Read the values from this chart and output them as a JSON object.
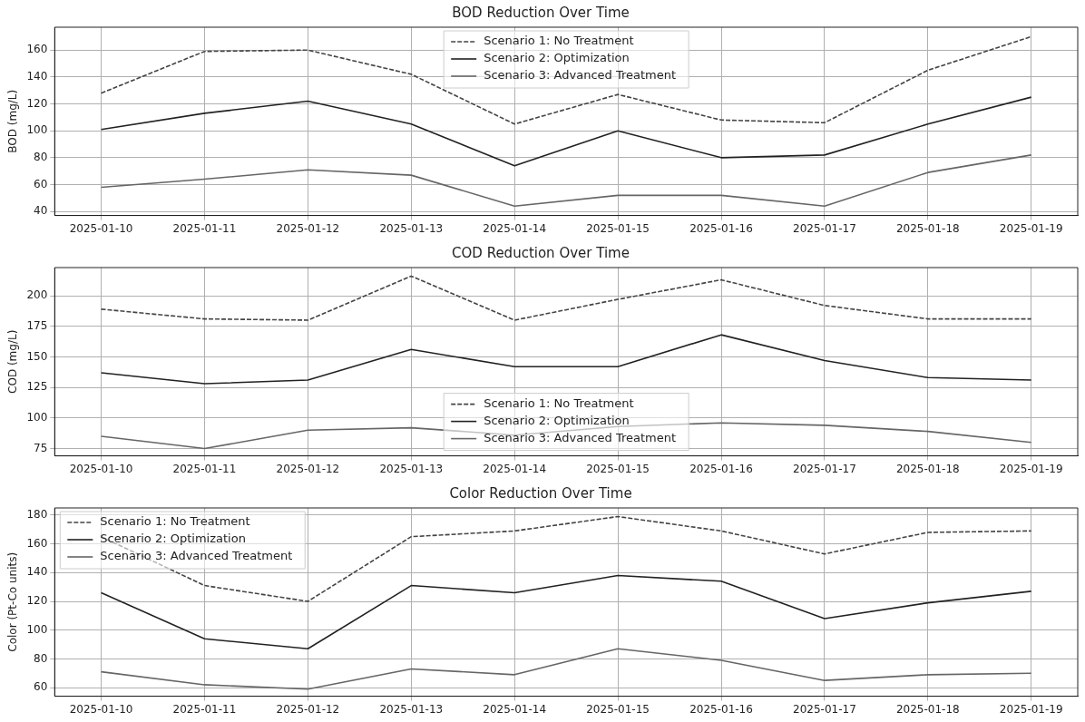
{
  "chart_data": [
    {
      "type": "line",
      "title": "BOD Reduction Over Time",
      "ylabel": "BOD (mg/L)",
      "x": [
        "2025-01-10",
        "2025-01-11",
        "2025-01-12",
        "2025-01-13",
        "2025-01-14",
        "2025-01-15",
        "2025-01-16",
        "2025-01-17",
        "2025-01-18",
        "2025-01-19"
      ],
      "xlim": [
        "2025-01-09T13:12",
        "2025-01-19T10:48"
      ],
      "xticks": [
        "2025-01-10",
        "2025-01-11",
        "2025-01-12",
        "2025-01-13",
        "2025-01-14",
        "2025-01-15",
        "2025-01-16",
        "2025-01-17",
        "2025-01-18",
        "2025-01-19"
      ],
      "ylim": [
        37,
        177
      ],
      "yticks": [
        40,
        60,
        80,
        100,
        120,
        140,
        160
      ],
      "grid": true,
      "legend": "top",
      "marker": "none",
      "series": [
        {
          "name": "Scenario 1: No Treatment",
          "color": "#444444",
          "line_style": "dashed",
          "values": [
            128,
            159,
            160,
            142,
            105,
            127,
            108,
            106,
            145,
            170
          ]
        },
        {
          "name": "Scenario 2: Optimization",
          "color": "#222222",
          "line_style": "solid",
          "values": [
            101,
            113,
            122,
            105,
            74,
            100,
            80,
            82,
            105,
            125
          ]
        },
        {
          "name": "Scenario 3: Advanced Treatment",
          "color": "#666666",
          "line_style": "solid",
          "values": [
            58,
            64,
            71,
            67,
            44,
            52,
            52,
            44,
            69,
            82
          ]
        }
      ]
    },
    {
      "type": "line",
      "title": "COD Reduction Over Time",
      "ylabel": "COD (mg/L)",
      "x": [
        "2025-01-10",
        "2025-01-11",
        "2025-01-12",
        "2025-01-13",
        "2025-01-14",
        "2025-01-15",
        "2025-01-16",
        "2025-01-17",
        "2025-01-18",
        "2025-01-19"
      ],
      "xlim": [
        "2025-01-09T13:12",
        "2025-01-19T10:48"
      ],
      "xticks": [
        "2025-01-10",
        "2025-01-11",
        "2025-01-12",
        "2025-01-13",
        "2025-01-14",
        "2025-01-15",
        "2025-01-16",
        "2025-01-17",
        "2025-01-18",
        "2025-01-19"
      ],
      "ylim": [
        69,
        223
      ],
      "yticks": [
        75,
        100,
        125,
        150,
        175,
        200
      ],
      "grid": true,
      "legend": "bottom",
      "marker": "none",
      "series": [
        {
          "name": "Scenario 1: No Treatment",
          "color": "#444444",
          "line_style": "dashed",
          "values": [
            189,
            181,
            180,
            216,
            180,
            197,
            213,
            192,
            181,
            181
          ]
        },
        {
          "name": "Scenario 2: Optimization",
          "color": "#222222",
          "line_style": "solid",
          "values": [
            137,
            128,
            131,
            156,
            142,
            142,
            168,
            147,
            133,
            131
          ]
        },
        {
          "name": "Scenario 3: Advanced Treatment",
          "color": "#666666",
          "line_style": "solid",
          "values": [
            85,
            75,
            90,
            92,
            86,
            93,
            96,
            94,
            89,
            80
          ]
        }
      ]
    },
    {
      "type": "line",
      "title": "Color Reduction Over Time",
      "ylabel": "Color (Pt-Co units)",
      "x": [
        "2025-01-10",
        "2025-01-11",
        "2025-01-12",
        "2025-01-13",
        "2025-01-14",
        "2025-01-15",
        "2025-01-16",
        "2025-01-17",
        "2025-01-18",
        "2025-01-19"
      ],
      "xlim": [
        "2025-01-09T13:12",
        "2025-01-19T10:48"
      ],
      "xticks": [
        "2025-01-10",
        "2025-01-11",
        "2025-01-12",
        "2025-01-13",
        "2025-01-14",
        "2025-01-15",
        "2025-01-16",
        "2025-01-17",
        "2025-01-18",
        "2025-01-19"
      ],
      "ylim": [
        54,
        185
      ],
      "yticks": [
        60,
        80,
        100,
        120,
        140,
        160,
        180
      ],
      "grid": true,
      "legend": "top left",
      "marker": "none",
      "series": [
        {
          "name": "Scenario 1: No Treatment",
          "color": "#444444",
          "line_style": "dashed",
          "values": [
            165,
            131,
            120,
            165,
            169,
            179,
            169,
            153,
            168,
            169
          ]
        },
        {
          "name": "Scenario 2: Optimization",
          "color": "#222222",
          "line_style": "solid",
          "values": [
            126,
            94,
            87,
            131,
            126,
            138,
            134,
            108,
            119,
            127
          ]
        },
        {
          "name": "Scenario 3: Advanced Treatment",
          "color": "#666666",
          "line_style": "solid",
          "values": [
            71,
            62,
            59,
            73,
            69,
            87,
            79,
            65,
            69,
            70
          ]
        }
      ]
    }
  ]
}
